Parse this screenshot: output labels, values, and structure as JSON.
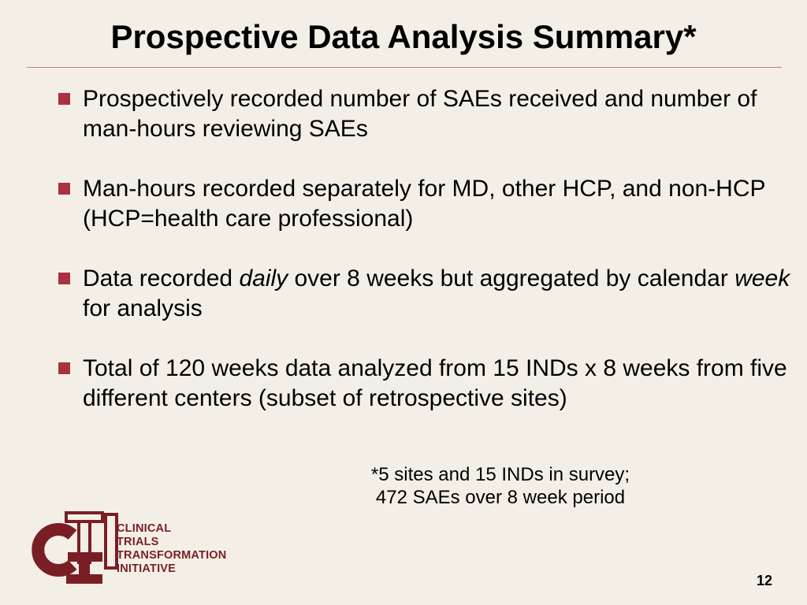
{
  "slide": {
    "title": "Prospective Data Analysis Summary*",
    "bullets": [
      {
        "parts": [
          "Prospectively recorded number of SAEs received and number of man-hours reviewing SAEs"
        ]
      },
      {
        "parts": [
          "Man-hours recorded separately for MD, other HCP, and non-HCP (HCP=health care professional)"
        ]
      },
      {
        "parts": [
          "Data recorded ",
          "daily",
          " over 8 weeks but aggregated by calendar ",
          "week",
          " for analysis"
        ]
      },
      {
        "parts": [
          "Total of 120 weeks data analyzed from 15 INDs x 8 weeks from five different centers (subset of retrospective sites)"
        ]
      }
    ],
    "footnote": {
      "line1": "*5 sites and 15 INDs in survey;",
      "line2": "472 SAEs over 8 week period"
    },
    "logo": {
      "letters": "CTI",
      "lines": [
        "CLINICAL",
        "TRIALS",
        "TRANSFORMATION",
        "INITIATIVE"
      ]
    },
    "page_number": "12",
    "colors": {
      "background": "#f4efe6",
      "accent": "#a8323e",
      "logo": "#7a1e25",
      "rule": "#c97a80"
    }
  }
}
